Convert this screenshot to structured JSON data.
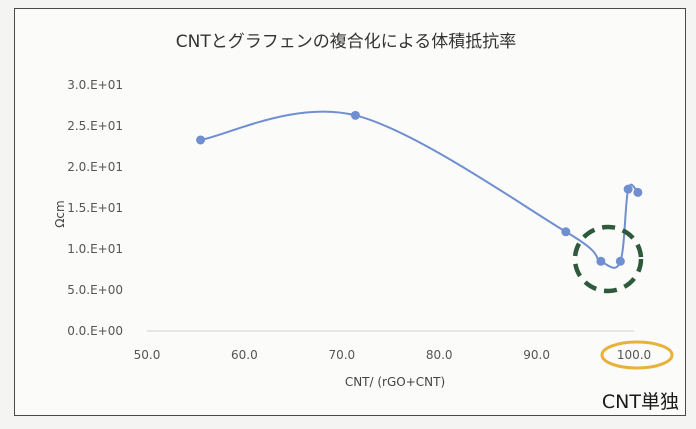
{
  "chart_data": {
    "type": "scatter",
    "title": "CNTとグラフェンの複合化による体積抵抗率",
    "xlabel": "CNT/ (rGO+CNT)",
    "ylabel": "Ωcm",
    "xlim": [
      50,
      100
    ],
    "ylim": [
      0,
      30
    ],
    "x_ticks": [
      "50.0",
      "60.0",
      "70.0",
      "80.0",
      "90.0",
      "100.0"
    ],
    "y_ticks": [
      "0.0.E+00",
      "5.0.E+00",
      "1.0.E+01",
      "1.5.E+01",
      "2.0.E+01",
      "2.5.E+01",
      "3.0.E+01"
    ],
    "line_style": "smooth",
    "grid": false,
    "series_color": "#6f8fd0",
    "x": [
      55.5,
      71.4,
      93.0,
      96.6,
      98.6,
      99.4,
      100.4
    ],
    "y": [
      23.3,
      26.3,
      12.1,
      8.5,
      8.5,
      17.3,
      16.9
    ],
    "annotations": {
      "dashed_circle_color": "#2e5a3b",
      "ellipse_color": "#e8b23a",
      "label": "CNT単独"
    }
  }
}
